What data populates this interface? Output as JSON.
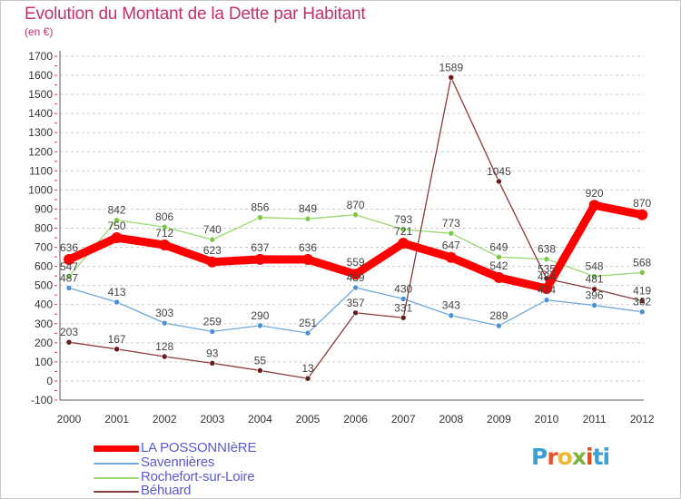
{
  "colors": {
    "title": "#c4306e",
    "legend_text": "#5b5bd6",
    "axis": "#555555",
    "tick_text": "#333333",
    "grid": "#cccccc",
    "logo": [
      "#3aa0d8",
      "#e8502a",
      "#f2b632",
      "#7cb342",
      "#e64a19",
      "#3aa0d8"
    ]
  },
  "logo": {
    "text": "Proxiti"
  },
  "chart_data": {
    "type": "line",
    "title": "Evolution du Montant de la Dette par Habitant",
    "subtitle": "(en €)",
    "x": [
      "2000",
      "2001",
      "2002",
      "2003",
      "2004",
      "2005",
      "2006",
      "2007",
      "2008",
      "2009",
      "2010",
      "2011",
      "2012"
    ],
    "ylim": [
      -100,
      1700
    ],
    "yticks": [
      -100,
      0,
      100,
      200,
      300,
      400,
      500,
      600,
      700,
      800,
      900,
      1000,
      1100,
      1200,
      1300,
      1400,
      1500,
      1600,
      1700
    ],
    "grid": true,
    "grid_style": "dashed horizontal",
    "legend_position": "bottom-left",
    "series": [
      {
        "name": "LA POSSONNIèRE",
        "color": "#ff0000",
        "line_width": 9,
        "marker_color": "#ff0000",
        "values": [
          636,
          750,
          712,
          623,
          637,
          636,
          559,
          721,
          647,
          542,
          484,
          920,
          870
        ],
        "labels": [
          "636",
          "750",
          "712",
          "623",
          "637",
          "636",
          "559",
          "",
          "647",
          "542",
          "",
          "920",
          "870"
        ]
      },
      {
        "name": "Savennières",
        "color": "#6fa8dc",
        "line_width": 1.3,
        "marker_color": "#4a90d9",
        "values": [
          487,
          413,
          303,
          259,
          290,
          251,
          489,
          430,
          343,
          289,
          424,
          396,
          362
        ],
        "labels": [
          "487",
          "413",
          "303",
          "259",
          "290",
          "251",
          "489",
          "430",
          "343",
          "289",
          "424",
          "396",
          "362"
        ]
      },
      {
        "name": "Rochefort-sur-Loire",
        "color": "#9bd96f",
        "line_width": 1.3,
        "marker_color": "#7ac943",
        "values": [
          547,
          842,
          806,
          740,
          856,
          849,
          870,
          793,
          773,
          649,
          638,
          548,
          568
        ],
        "labels": [
          "547",
          "842",
          "806",
          "740",
          "856",
          "849",
          "870",
          "793",
          "773",
          "649",
          "638",
          "548",
          "568"
        ]
      },
      {
        "name": "Béhuard",
        "color": "#8b3a3a",
        "line_width": 1.3,
        "marker_color": "#6b1a1a",
        "values": [
          203,
          167,
          128,
          93,
          55,
          13,
          357,
          331,
          1589,
          1045,
          535,
          481,
          419
        ],
        "labels": [
          "203",
          "167",
          "128",
          "93",
          "55",
          "13",
          "357",
          "331",
          "1589",
          "1045",
          "535",
          "481",
          "419"
        ]
      }
    ],
    "overlapping_labels": [
      {
        "series": 0,
        "index": 7,
        "text": "721"
      },
      {
        "series": 0,
        "index": 10,
        "text": "484"
      }
    ]
  }
}
